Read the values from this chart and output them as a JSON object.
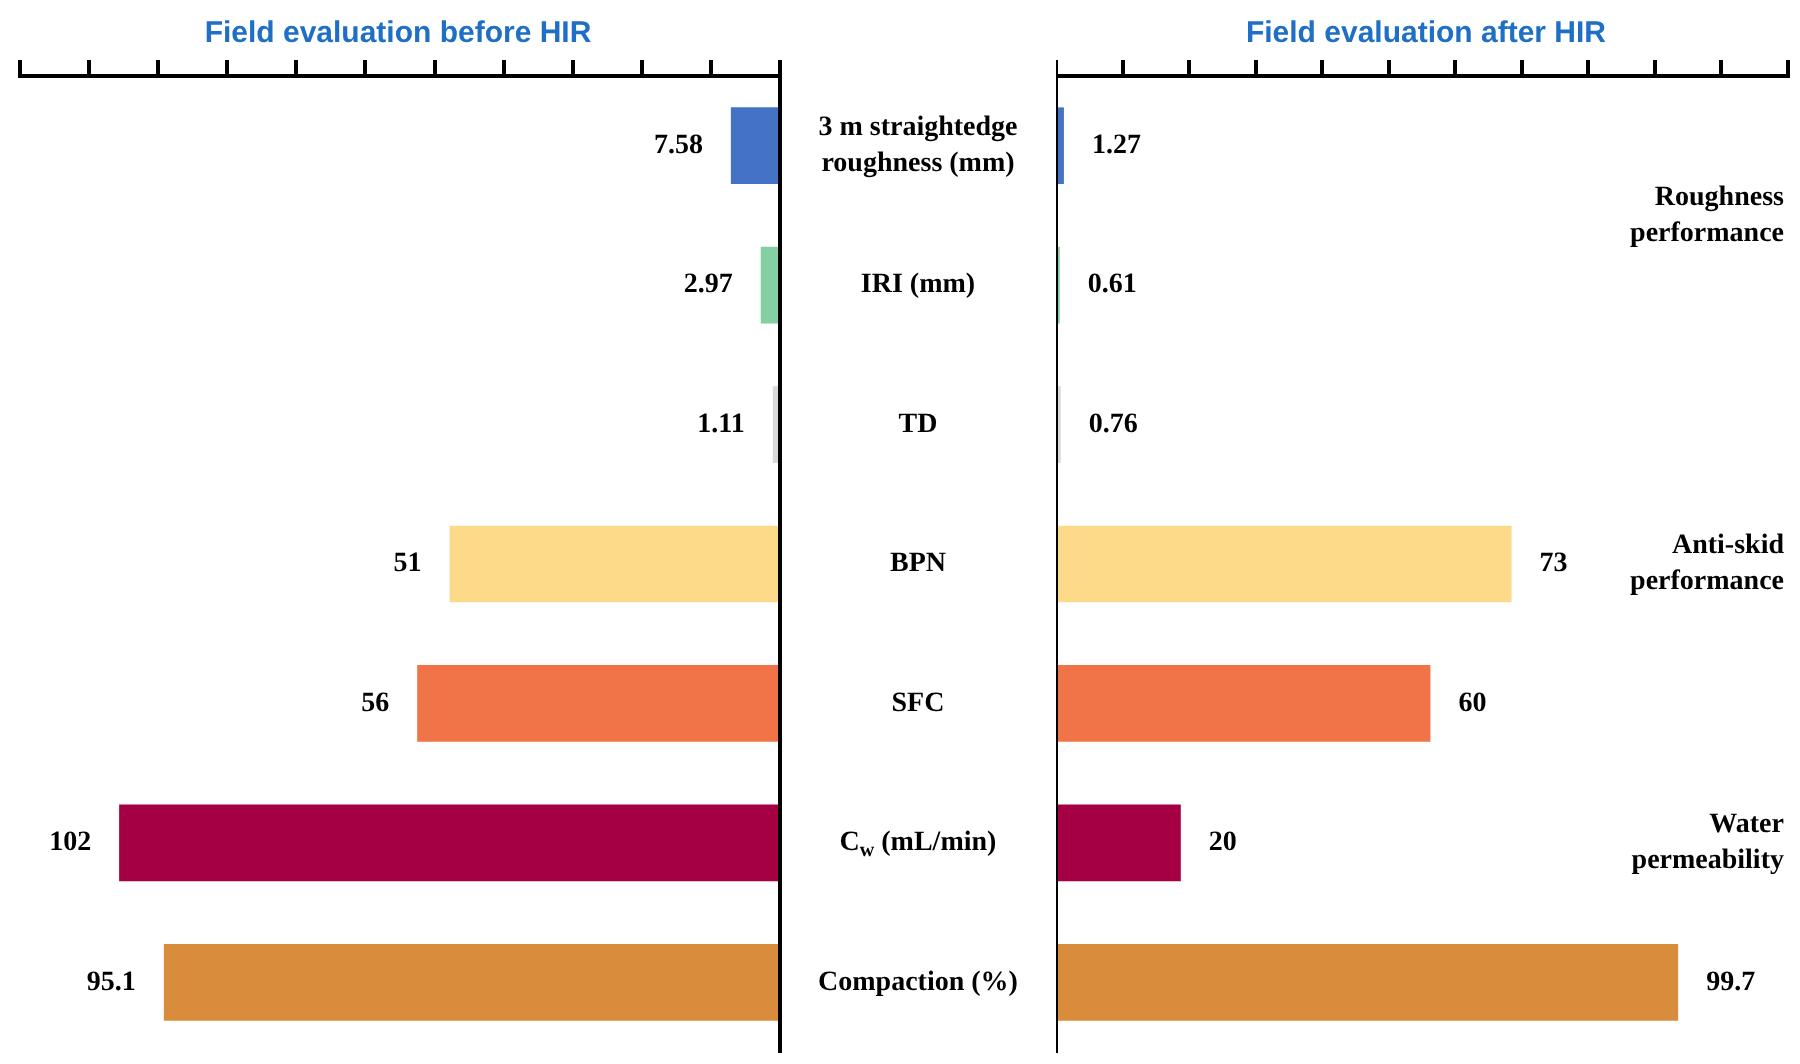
{
  "chart_data": [
    {
      "type": "bar",
      "orientation": "horizontal",
      "title": "Field evaluation before HIR",
      "categories": [
        "3 m straightedge roughness (mm)",
        "IRI (mm)",
        "TD",
        "BPN",
        "SFC",
        "C$_{w}$ (mL/min)",
        "Compaction (%)"
      ],
      "values": [
        7.58,
        2.97,
        1.11,
        51,
        56,
        102,
        95.1
      ],
      "colors": [
        "#4472c4",
        "#84d0a4",
        "#d9d9d9",
        "#fdd98a",
        "#f07448",
        "#a50044",
        "#d98c3c"
      ],
      "data_labels": true,
      "tick_labels": "y"
    },
    {
      "type": "bar",
      "orientation": "horizontal",
      "title": "Field evaluation after HIR",
      "categories": [
        null,
        null,
        null,
        null,
        null,
        null,
        null
      ],
      "values": [
        1.27,
        0.61,
        0.76,
        73,
        60,
        20,
        99.7
      ],
      "colors": [
        "#4472c4",
        "#84d0a4",
        "#d9d9d9",
        "#fdd98a",
        "#f07448",
        "#a50044",
        "#d98c3c"
      ],
      "data_labels": true,
      "tick_labels": false,
      "annotations": [
        "Roughness performance",
        "Anti-skid performance",
        "Water permeability"
      ]
    }
  ]
}
